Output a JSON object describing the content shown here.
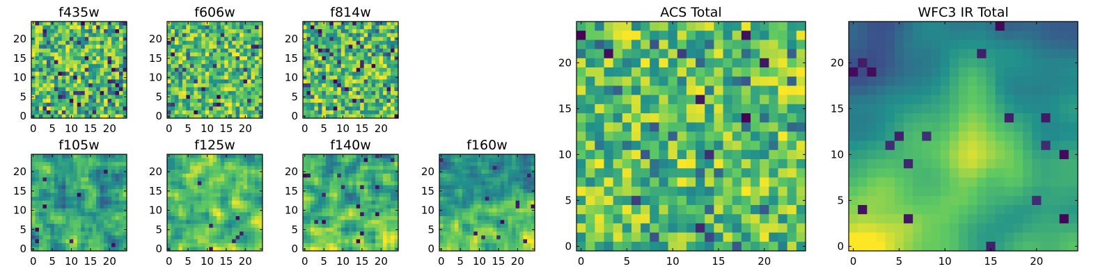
{
  "figure": {
    "colormap": [
      "#440154",
      "#3b528b",
      "#21918c",
      "#5ec962",
      "#fde725"
    ],
    "frame_color": "#000000"
  },
  "chart_data": [
    {
      "id": "f435w",
      "type": "heatmap",
      "title": "f435w",
      "grid_size": 25,
      "xlim": [
        0,
        25
      ],
      "ylim": [
        0,
        25
      ],
      "xticks": [
        "0",
        "5",
        "10",
        "15",
        "20"
      ],
      "yticks": [
        "0",
        "5",
        "10",
        "15",
        "20"
      ],
      "legend": "none",
      "grid": false,
      "pattern": "uniform noise, mostly green-yellow with scattered dark purple pixels"
    },
    {
      "id": "f606w",
      "type": "heatmap",
      "title": "f606w",
      "grid_size": 25,
      "xlim": [
        0,
        25
      ],
      "ylim": [
        0,
        25
      ],
      "xticks": [
        "0",
        "5",
        "10",
        "15",
        "20"
      ],
      "yticks": [
        "0",
        "5",
        "10",
        "15",
        "20"
      ],
      "legend": "none",
      "grid": false,
      "pattern": "uniform noise, mostly green-yellow with scattered dark purple pixels"
    },
    {
      "id": "f814w",
      "type": "heatmap",
      "title": "f814w",
      "grid_size": 25,
      "xlim": [
        0,
        25
      ],
      "ylim": [
        0,
        25
      ],
      "xticks": [
        "0",
        "5",
        "10",
        "15",
        "20"
      ],
      "yticks": [
        "0",
        "5",
        "10",
        "15",
        "20"
      ],
      "legend": "none",
      "grid": false,
      "pattern": "uniform noise, mostly green-yellow with scattered dark purple pixels"
    },
    {
      "id": "f105w",
      "type": "heatmap",
      "title": "f105w",
      "grid_size": 25,
      "xlim": [
        0,
        25
      ],
      "ylim": [
        0,
        25
      ],
      "xticks": [
        "0",
        "5",
        "10",
        "15",
        "20"
      ],
      "yticks": [
        "0",
        "5",
        "10",
        "15",
        "20"
      ],
      "legend": "none",
      "grid": false,
      "pattern": "smooth noise, blue-green with yellow patches"
    },
    {
      "id": "f125w",
      "type": "heatmap",
      "title": "f125w",
      "grid_size": 25,
      "xlim": [
        0,
        25
      ],
      "ylim": [
        0,
        25
      ],
      "xticks": [
        "0",
        "5",
        "10",
        "15",
        "20"
      ],
      "yticks": [
        "0",
        "5",
        "10",
        "15",
        "20"
      ],
      "legend": "none",
      "grid": false,
      "pattern": "smooth noise, yellow-green with bright center"
    },
    {
      "id": "f140w",
      "type": "heatmap",
      "title": "f140w",
      "grid_size": 25,
      "xlim": [
        0,
        25
      ],
      "ylim": [
        0,
        25
      ],
      "xticks": [
        "0",
        "5",
        "10",
        "15",
        "20"
      ],
      "yticks": [
        "0",
        "5",
        "10",
        "15",
        "20"
      ],
      "legend": "none",
      "grid": false,
      "pattern": "smooth noise, green with yellow bottom"
    },
    {
      "id": "f160w",
      "type": "heatmap",
      "title": "f160w",
      "grid_size": 25,
      "xlim": [
        0,
        25
      ],
      "ylim": [
        0,
        25
      ],
      "xticks": [
        "0",
        "5",
        "10",
        "15",
        "20"
      ],
      "yticks": [
        "0",
        "5",
        "10",
        "15",
        "20"
      ],
      "legend": "none",
      "grid": false,
      "pattern": "smooth noise, blue-green top, yellow bottom"
    },
    {
      "id": "acs_total",
      "type": "heatmap",
      "title": "ACS Total",
      "grid_size": 25,
      "xlim": [
        0,
        25
      ],
      "ylim": [
        0,
        25
      ],
      "xticks": [
        "0",
        "5",
        "10",
        "15",
        "20"
      ],
      "yticks": [
        "0",
        "5",
        "10",
        "15",
        "20"
      ],
      "legend": "none",
      "grid": false,
      "pattern": "uniform noise, green-yellow with a few dark purple pixels"
    },
    {
      "id": "wfc3_ir_total",
      "type": "heatmap",
      "title": "WFC3 IR Total",
      "grid_size": 25,
      "xlim": [
        0,
        25
      ],
      "ylim": [
        0,
        25
      ],
      "xticks": [
        "0",
        "5",
        "10",
        "15",
        "20"
      ],
      "yticks": [
        "0",
        "5",
        "10",
        "15",
        "20"
      ],
      "legend": "none",
      "grid": false,
      "pattern": "smooth field, dark blue top rows, bright yellow bottom-left and center"
    }
  ]
}
